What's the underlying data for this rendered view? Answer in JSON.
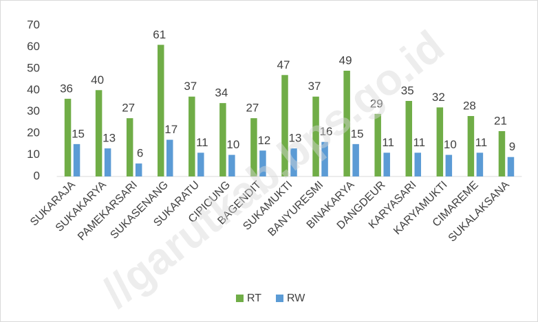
{
  "watermark": "//garutkab.bps.go.id",
  "chart_data": {
    "type": "bar",
    "categories": [
      "SUKARAJA",
      "SUKAKARYA",
      "PAMEKARSARI",
      "SUKASENANG",
      "SUKARATU",
      "CIPICUNG",
      "BAGENDIT",
      "SUKAMUKTI",
      "BANYURESMI",
      "BINAKARYA",
      "DANGDEUR",
      "KARYASARI",
      "KARYAMUKTI",
      "CIMAREME",
      "SUKALAKSANA"
    ],
    "series": [
      {
        "name": "RT",
        "color": "#70ad47",
        "values": [
          36,
          40,
          27,
          61,
          37,
          34,
          27,
          47,
          37,
          49,
          29,
          35,
          32,
          28,
          21
        ]
      },
      {
        "name": "RW",
        "color": "#5b9bd5",
        "values": [
          15,
          13,
          6,
          17,
          11,
          10,
          12,
          13,
          16,
          15,
          11,
          11,
          10,
          11,
          9
        ]
      }
    ],
    "ylim": [
      0,
      70
    ],
    "yticks": [
      0,
      10,
      20,
      30,
      40,
      50,
      60,
      70
    ],
    "grid": false,
    "legend": "bottom"
  }
}
